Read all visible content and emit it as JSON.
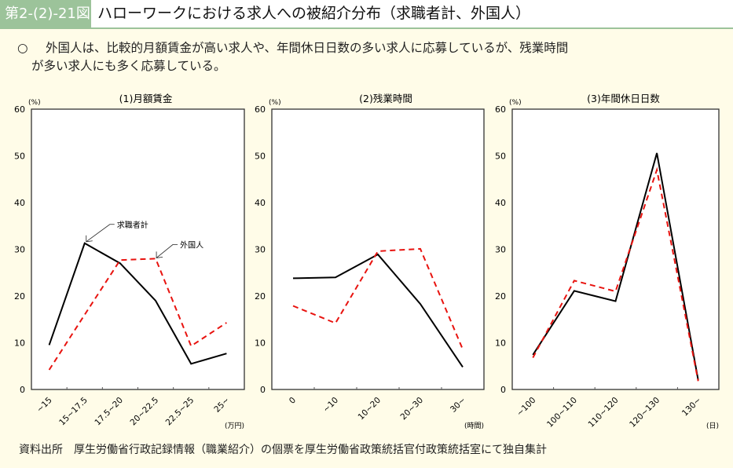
{
  "header": {
    "figure_number": "第2-(2)-21図",
    "title": "ハローワークにおける求人への被紹介分布（求職者計、外国人）"
  },
  "summary": {
    "bullet": "○",
    "line1": "外国人は、比較的月額賃金が高い求人や、年間休日日数の多い求人に応募しているが、残業時間",
    "line2": "が多い求人にも多く応募している。"
  },
  "source": "資料出所　厚生労働省行政記録情報（職業紹介）の個票を厚生労働省政策統括官付政策統括室にて独自集計",
  "colors": {
    "total": "#000000",
    "foreign": "#e8130f"
  },
  "chart_data": [
    {
      "type": "line",
      "title": "(1)月額賃金",
      "ylabel": "(%)",
      "xunit": "(万円)",
      "ylim": [
        0,
        60
      ],
      "yticks": [
        0,
        10,
        20,
        30,
        40,
        50,
        60
      ],
      "categories": [
        "~15",
        "15~17.5",
        "17.5~20",
        "20~22.5",
        "22.5~25",
        "25~"
      ],
      "series": [
        {
          "name": "求職者計",
          "values": [
            9.5,
            31.3,
            27.0,
            19.0,
            5.5,
            7.7
          ]
        },
        {
          "name": "外国人",
          "values": [
            4.2,
            16.0,
            27.7,
            28.0,
            9.3,
            14.3
          ]
        }
      ],
      "annotations": [
        "求職者計",
        "外国人"
      ]
    },
    {
      "type": "line",
      "title": "(2)残業時間",
      "ylabel": "(%)",
      "xunit": "(時間)",
      "ylim": [
        0,
        60
      ],
      "yticks": [
        0,
        10,
        20,
        30,
        40,
        50,
        60
      ],
      "categories": [
        "0",
        "~10",
        "10~20",
        "20~30",
        "30~"
      ],
      "series": [
        {
          "name": "求職者計",
          "values": [
            23.8,
            24.0,
            28.9,
            18.3,
            4.8
          ]
        },
        {
          "name": "外国人",
          "values": [
            17.9,
            14.2,
            29.6,
            30.1,
            8.6
          ]
        }
      ]
    },
    {
      "type": "line",
      "title": "(3)年間休日日数",
      "ylabel": "(%)",
      "xunit": "(日)",
      "ylim": [
        0,
        60
      ],
      "yticks": [
        0,
        10,
        20,
        30,
        40,
        50,
        60
      ],
      "categories": [
        "~100",
        "100~110",
        "110~120",
        "120~130",
        "130~"
      ],
      "series": [
        {
          "name": "求職者計",
          "values": [
            7.4,
            21.1,
            18.9,
            50.6,
            2.0
          ]
        },
        {
          "name": "外国人",
          "values": [
            6.8,
            23.3,
            21.0,
            47.0,
            1.8
          ]
        }
      ]
    }
  ]
}
